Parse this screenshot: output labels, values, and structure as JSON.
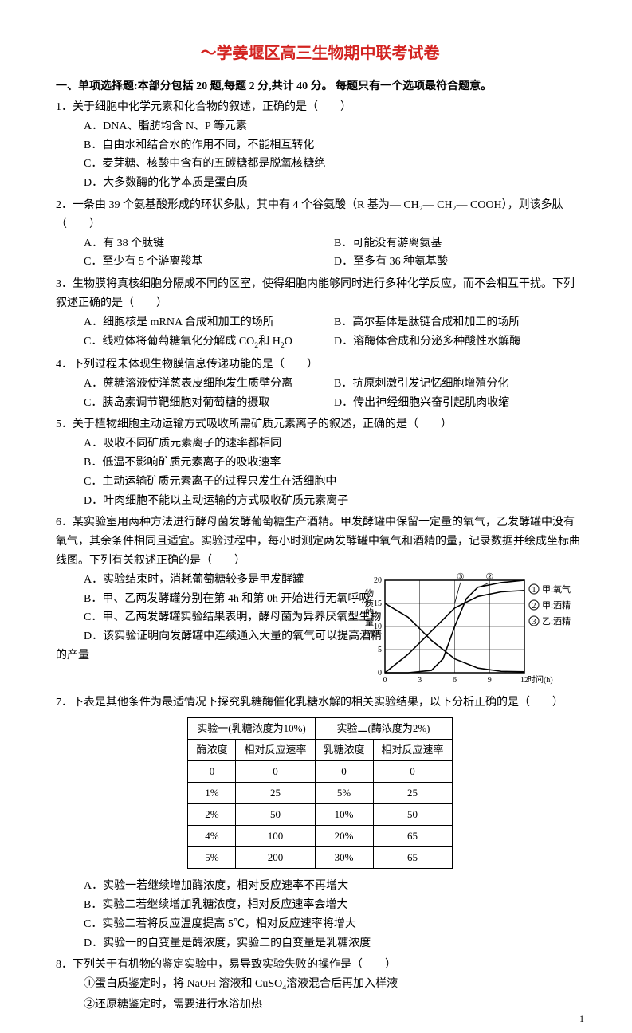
{
  "title": "～学姜堰区高三生物期中联考试卷",
  "section_head": "一、单项选择题:本部分包括 20 题,每题 2 分,共计 40 分。 每题只有一个选项最符合题意。",
  "page_num": "1",
  "questions": [
    {
      "num": "1．",
      "stem": "关于细胞中化学元素和化合物的叙述，正确的是（　　）",
      "layout": "full",
      "opts": [
        "A．DNA、脂肪均含 N、P 等元素",
        "B．自由水和结合水的作用不同，不能相互转化",
        "C．麦芽糖、核酸中含有的五碳糖都是脱氧核糖绝",
        "D．大多数酶的化学本质是蛋白质"
      ]
    },
    {
      "num": "2．",
      "stem": "一条由 39 个氨基酸形成的环状多肽，其中有 4 个谷氨酸（R 基为— CH₂— CH₂— COOH），则该多肽（　　）",
      "layout": "half",
      "opts": [
        "A．有 38 个肽键",
        "B．可能没有游离氨基",
        "C．至少有 5 个游离羧基",
        "D．至多有 36 种氨基酸"
      ]
    },
    {
      "num": "3．",
      "stem": "生物膜将真核细胞分隔成不同的区室，使得细胞内能够同时进行多种化学反应，而不会相互干扰。下列叙述正确的是（　　）",
      "layout": "half",
      "opts": [
        "A．细胞核是 mRNA 合成和加工的场所",
        "B．高尔基体是肽链合成和加工的场所",
        "C．线粒体将葡萄糖氧化分解成 CO₂和 H₂O",
        "D．溶酶体合成和分泌多种酸性水解酶"
      ]
    },
    {
      "num": "4．",
      "stem": "下列过程未体现生物膜信息传递功能的是（　　）",
      "layout": "half",
      "opts": [
        "A．蔗糖溶液使洋葱表皮细胞发生质壁分离",
        "B．抗原刺激引发记忆细胞增殖分化",
        "C．胰岛素调节靶细胞对葡萄糖的摄取",
        "D．传出神经细胞兴奋引起肌肉收缩"
      ]
    },
    {
      "num": "5．",
      "stem": "关于植物细胞主动运输方式吸收所需矿质元素离子的叙述，正确的是（　　）",
      "layout": "full",
      "opts": [
        "A．吸收不同矿质元素离子的速率都相同",
        "B．低温不影响矿质元素离子的吸收速率",
        "C．主动运输矿质元素离子的过程只发生在活细胞中",
        "D．叶肉细胞不能以主动运输的方式吸收矿质元素离子"
      ]
    },
    {
      "num": "6．",
      "stem": "某实验室用两种方法进行酵母菌发酵葡萄糖生产酒精。甲发酵罐中保留一定量的氧气，乙发酵罐中没有氧气，其余条件相同且适宜。实验过程中，每小时测定两发酵罐中氧气和酒精的量，记录数据并绘成坐标曲线图。下列有关叙述正确的是（　　）",
      "layout": "full",
      "opts": [
        "A．实验结束时，消耗葡萄糖较多是甲发酵罐",
        "B．甲、乙两发酵罐分别在第 4h 和第 0h 开始进行无氧呼吸",
        "C．甲、乙两发酵罐实验结果表明，酵母菌为异养厌氧型生物",
        "D．该实验证明向发酵罐中连续通入大量的氧气可以提高酒精"
      ],
      "tail": "的产量",
      "chart": {
        "xlabel": "时间(h)",
        "ylabel": "物质的量(mg)",
        "xlim": [
          0,
          12
        ],
        "ylim": [
          0,
          20
        ],
        "xticks": [
          0,
          3,
          6,
          9,
          12
        ],
        "yticks": [
          0,
          5,
          10,
          15,
          20
        ],
        "bg": "#ffffff",
        "grid": "#000000",
        "legend": [
          {
            "label": "甲:氧气",
            "mark": "①"
          },
          {
            "label": "甲:酒精",
            "mark": "②"
          },
          {
            "label": "乙:酒精",
            "mark": "③"
          }
        ],
        "series": [
          {
            "name": "①",
            "points": [
              [
                0,
                15
              ],
              [
                2,
                12
              ],
              [
                4,
                7
              ],
              [
                6,
                3
              ],
              [
                8,
                1
              ],
              [
                10,
                0.3
              ],
              [
                12,
                0.2
              ]
            ]
          },
          {
            "name": "②",
            "points": [
              [
                0,
                0
              ],
              [
                2,
                0
              ],
              [
                4,
                0.5
              ],
              [
                5,
                3
              ],
              [
                6,
                10
              ],
              [
                7,
                16
              ],
              [
                8,
                18.5
              ],
              [
                10,
                19.5
              ],
              [
                12,
                20
              ]
            ]
          },
          {
            "name": "③",
            "points": [
              [
                0,
                0
              ],
              [
                2,
                4
              ],
              [
                4,
                9
              ],
              [
                6,
                14
              ],
              [
                8,
                16.5
              ],
              [
                10,
                17.5
              ],
              [
                12,
                17.8
              ]
            ]
          }
        ]
      }
    },
    {
      "num": "7．",
      "stem": "下表是其他条件为最适情况下探究乳糖酶催化乳糖水解的相关实验结果，以下分析正确的是（　　）",
      "layout": "full",
      "table": {
        "head1": [
          "实验一(乳糖浓度为10%)",
          "实验二(酶浓度为2%)"
        ],
        "head2": [
          "酶浓度",
          "相对反应速率",
          "乳糖浓度",
          "相对反应速率"
        ],
        "rows": [
          [
            "0",
            "0",
            "0",
            "0"
          ],
          [
            "1%",
            "25",
            "5%",
            "25"
          ],
          [
            "2%",
            "50",
            "10%",
            "50"
          ],
          [
            "4%",
            "100",
            "20%",
            "65"
          ],
          [
            "5%",
            "200",
            "30%",
            "65"
          ]
        ]
      },
      "opts": [
        "A．实验一若继续增加酶浓度，相对反应速率不再增大",
        "B．实验二若继续增加乳糖浓度，相对反应速率会增大",
        "C．实验二若将反应温度提高 5℃，相对反应速率将增大",
        "D．实验一的自变量是酶浓度，实验二的自变量是乳糖浓度"
      ]
    },
    {
      "num": "8．",
      "stem": "下列关于有机物的鉴定实验中，易导致实验失败的操作是（　　）",
      "layout": "full",
      "opts": [
        "①蛋白质鉴定时，将 NaOH 溶液和 CuSO₄溶液混合后再加入样液",
        "②还原糖鉴定时，需要进行水浴加热"
      ]
    }
  ]
}
